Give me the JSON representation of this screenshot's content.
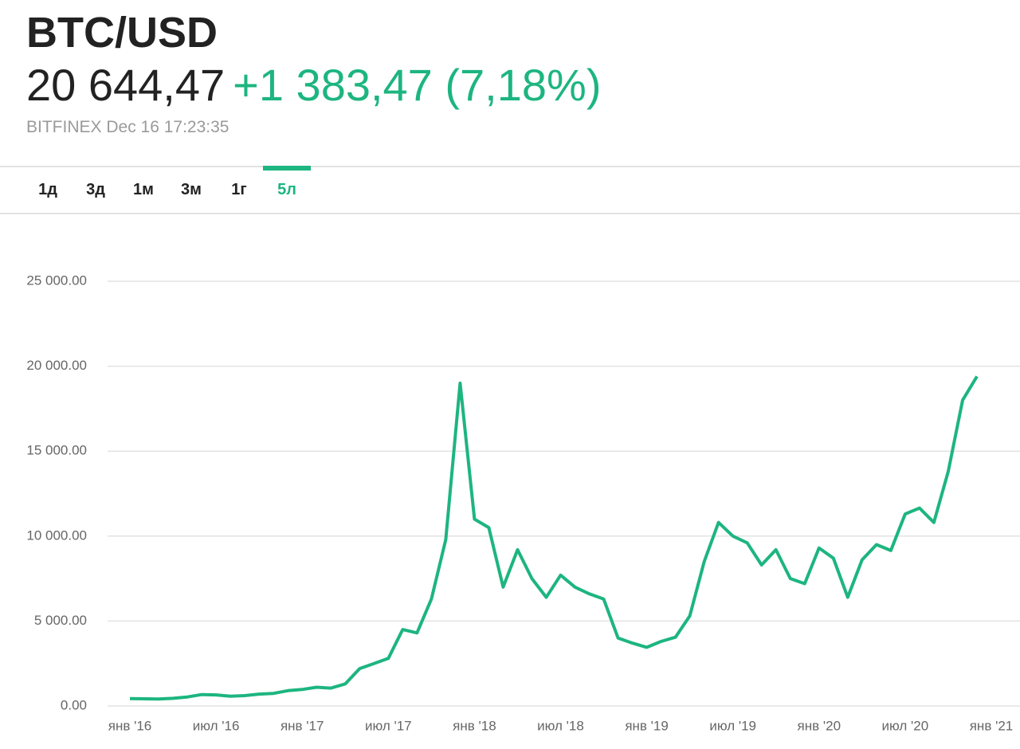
{
  "header": {
    "title": "BTC/USD",
    "price": "20 644,47",
    "change": "+1 383,47 (7,18%)",
    "source": "BITFINEX Dec 16 17:23:35",
    "tabs": [
      "1д",
      "3д",
      "1м",
      "3м",
      "1г",
      "5л"
    ],
    "selected": "5л"
  },
  "chart_data": {
    "type": "line",
    "color": "#1db580",
    "grid": true,
    "x": [
      "2016-01",
      "2016-02",
      "2016-03",
      "2016-04",
      "2016-05",
      "2016-06",
      "2016-07",
      "2016-08",
      "2016-09",
      "2016-10",
      "2016-11",
      "2016-12",
      "2017-01",
      "2017-02",
      "2017-03",
      "2017-04",
      "2017-05",
      "2017-06",
      "2017-07",
      "2017-08",
      "2017-09",
      "2017-10",
      "2017-11",
      "2017-12",
      "2018-01",
      "2018-02",
      "2018-03",
      "2018-04",
      "2018-05",
      "2018-06",
      "2018-07",
      "2018-08",
      "2018-09",
      "2018-10",
      "2018-11",
      "2018-12",
      "2019-01",
      "2019-02",
      "2019-03",
      "2019-04",
      "2019-05",
      "2019-06",
      "2019-07",
      "2019-08",
      "2019-09",
      "2019-10",
      "2019-11",
      "2019-12",
      "2020-01",
      "2020-02",
      "2020-03",
      "2020-04",
      "2020-05",
      "2020-06",
      "2020-07",
      "2020-08",
      "2020-09",
      "2020-10",
      "2020-11",
      "2020-12"
    ],
    "values": [
      430,
      420,
      415,
      450,
      530,
      670,
      650,
      575,
      610,
      700,
      740,
      900,
      970,
      1100,
      1050,
      1300,
      2200,
      2500,
      2800,
      4500,
      4300,
      6300,
      9800,
      19000,
      11000,
      10500,
      7000,
      9200,
      7500,
      6400,
      7700,
      7000,
      6600,
      6300,
      4000,
      3700,
      3450,
      3800,
      4050,
      5300,
      8500,
      10800,
      10000,
      9600,
      8300,
      9200,
      7500,
      7200,
      9300,
      8700,
      6400,
      8600,
      9500,
      9150,
      11300,
      11650,
      10800,
      13800,
      18000,
      19400
    ],
    "xlim": [
      "2015-12",
      "2021-02"
    ],
    "xticks": [
      {
        "value": "2016-01",
        "label": "янв '16"
      },
      {
        "value": "2016-07",
        "label": "июл '16"
      },
      {
        "value": "2017-01",
        "label": "янв '17"
      },
      {
        "value": "2017-07",
        "label": "июл '17"
      },
      {
        "value": "2018-01",
        "label": "янв '18"
      },
      {
        "value": "2018-07",
        "label": "июл '18"
      },
      {
        "value": "2019-01",
        "label": "янв '19"
      },
      {
        "value": "2019-07",
        "label": "июл '19"
      },
      {
        "value": "2020-01",
        "label": "янв '20"
      },
      {
        "value": "2020-07",
        "label": "июл '20"
      },
      {
        "value": "2021-01",
        "label": "янв '21"
      }
    ],
    "ylim": [
      0,
      25000
    ],
    "yticks": [
      {
        "value": 0,
        "label": "0.00"
      },
      {
        "value": 5000,
        "label": "5 000.00"
      },
      {
        "value": 10000,
        "label": "10 000.00"
      },
      {
        "value": 15000,
        "label": "15 000.00"
      },
      {
        "value": 20000,
        "label": "20 000.00"
      },
      {
        "value": 25000,
        "label": "25 000.00"
      }
    ]
  }
}
